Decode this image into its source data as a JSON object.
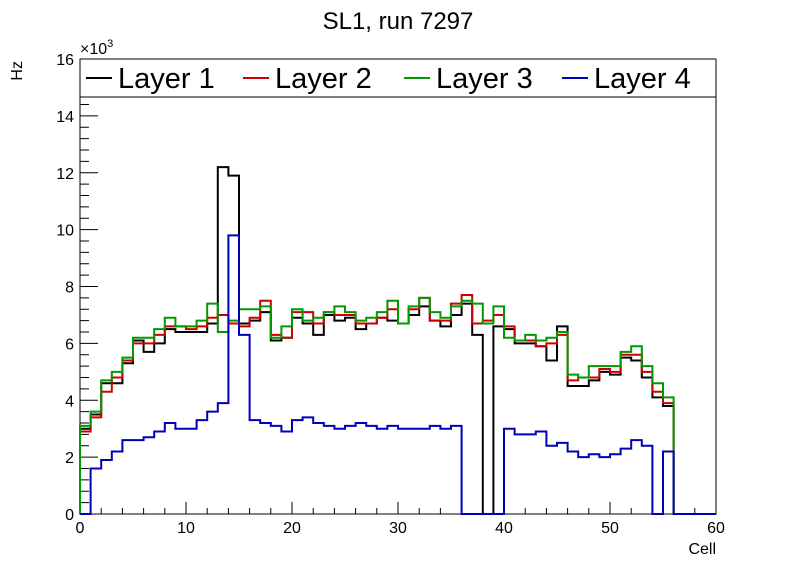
{
  "chart_data": {
    "type": "line",
    "title": "SL1, run 7297",
    "xlabel": "Cell",
    "ylabel": "Hz",
    "y_multiplier_label": "×10",
    "y_multiplier_exponent": "3",
    "xlim": [
      0,
      60
    ],
    "ylim": [
      0,
      16000
    ],
    "x_ticks": [
      0,
      10,
      20,
      30,
      40,
      50,
      60
    ],
    "x_tick_labels": [
      "0",
      "10",
      "20",
      "30",
      "40",
      "50",
      "60"
    ],
    "y_ticks": [
      0,
      2000,
      4000,
      6000,
      8000,
      10000,
      12000,
      14000,
      16000
    ],
    "y_tick_labels": [
      "0",
      "2",
      "4",
      "6",
      "8",
      "10",
      "12",
      "14",
      "16"
    ],
    "grid": false,
    "legend_position": "top",
    "bin_edges_start": 0,
    "bin_width": 1,
    "series": [
      {
        "name": "Layer 1",
        "color": "#000000",
        "values": [
          3000,
          3500,
          4600,
          4600,
          5300,
          6100,
          5700,
          6000,
          6500,
          6400,
          6400,
          6400,
          6700,
          12200,
          11900,
          6700,
          6800,
          7100,
          6100,
          6200,
          6900,
          6700,
          6300,
          7000,
          6800,
          6900,
          6500,
          6700,
          6900,
          6800,
          6700,
          7000,
          7300,
          6800,
          6600,
          7000,
          7400,
          6300,
          0,
          6600,
          6500,
          6000,
          6000,
          5900,
          5400,
          6600,
          4500,
          4500,
          4700,
          5000,
          4900,
          5500,
          5400,
          4800,
          4100,
          3800,
          0,
          0,
          0,
          0
        ]
      },
      {
        "name": "Layer 2",
        "color": "#cc0000",
        "values": [
          2900,
          3400,
          4300,
          4800,
          5400,
          6000,
          6000,
          6300,
          6600,
          6600,
          6500,
          6600,
          6900,
          7000,
          6700,
          6600,
          6900,
          7500,
          6300,
          6200,
          7100,
          7100,
          6700,
          7100,
          7000,
          7000,
          6700,
          6700,
          6900,
          7200,
          6700,
          7200,
          7600,
          6800,
          6800,
          7400,
          7700,
          6700,
          6800,
          7000,
          6600,
          6100,
          6100,
          5900,
          6000,
          6300,
          4700,
          4800,
          4800,
          5100,
          5000,
          5600,
          5600,
          5000,
          4300,
          3900,
          0,
          0,
          0,
          0
        ]
      },
      {
        "name": "Layer 3",
        "color": "#009900",
        "values": [
          3100,
          3600,
          4700,
          5000,
          5500,
          6200,
          6200,
          6500,
          6900,
          6600,
          6600,
          6800,
          7400,
          6400,
          6800,
          7200,
          7200,
          7300,
          6200,
          6600,
          7200,
          6800,
          6900,
          7100,
          7300,
          7100,
          6800,
          6900,
          7100,
          7500,
          6700,
          7300,
          7600,
          7100,
          6900,
          7300,
          7500,
          7400,
          6700,
          7300,
          6200,
          6100,
          6300,
          6100,
          6200,
          6400,
          4900,
          4800,
          5200,
          5200,
          5200,
          5700,
          5900,
          5200,
          4600,
          4100,
          0,
          0,
          0,
          0
        ]
      },
      {
        "name": "Layer 4",
        "color": "#0000bb",
        "values": [
          0,
          1600,
          1900,
          2200,
          2600,
          2600,
          2700,
          2900,
          3200,
          3000,
          3000,
          3300,
          3600,
          3900,
          9800,
          6300,
          3300,
          3200,
          3100,
          2900,
          3300,
          3400,
          3200,
          3100,
          3000,
          3100,
          3200,
          3100,
          3000,
          3100,
          3000,
          3000,
          3000,
          3100,
          3000,
          3100,
          0,
          0,
          0,
          0,
          3000,
          2800,
          2800,
          2900,
          2400,
          2500,
          2200,
          2000,
          2100,
          2000,
          2100,
          2300,
          2600,
          2400,
          0,
          2200,
          0,
          0,
          0,
          0
        ]
      }
    ]
  }
}
